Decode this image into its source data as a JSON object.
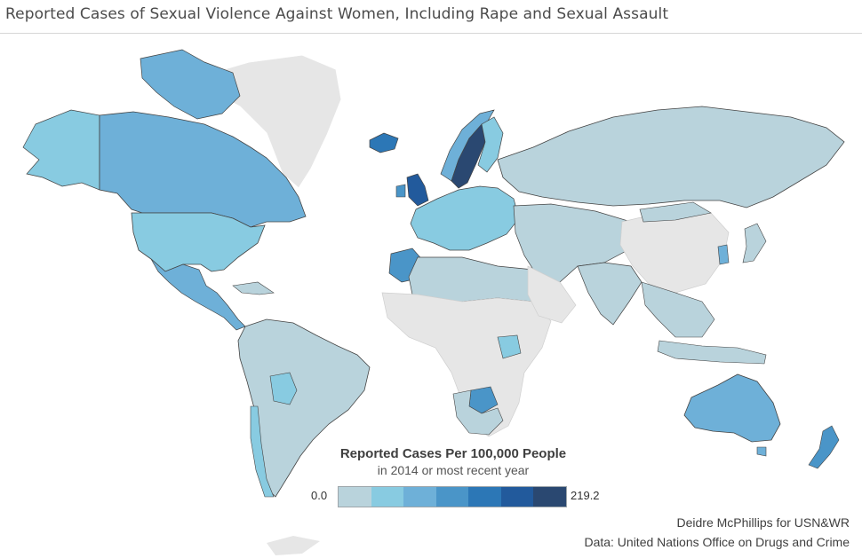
{
  "title": "Reported Cases of Sexual Violence Against Women, Including Rape and Sexual Assault",
  "legend": {
    "title": "Reported Cases Per 100,000 People",
    "subtitle": "in 2014 or most recent year",
    "min_label": "0.0",
    "max_label": "219.2",
    "min_value": 0.0,
    "max_value": 219.2,
    "colors": [
      "#b9d3dc",
      "#88cbe1",
      "#6eb0d8",
      "#4a95c8",
      "#2c77b6",
      "#225a9c",
      "#2a4871"
    ]
  },
  "no_data_color": "#e6e6e6",
  "credit": "Deidre McPhillips for USN&WR",
  "source": "Data: United Nations Office on Drugs and Crime"
}
